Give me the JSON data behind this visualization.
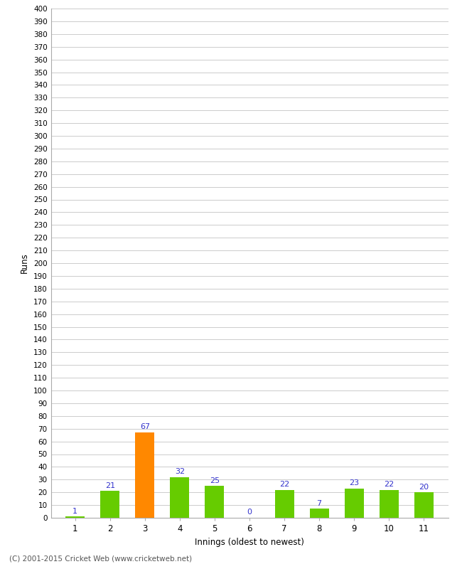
{
  "xlabel": "Innings (oldest to newest)",
  "ylabel": "Runs",
  "categories": [
    "1",
    "2",
    "3",
    "4",
    "5",
    "6",
    "7",
    "8",
    "9",
    "10",
    "11"
  ],
  "values": [
    1,
    21,
    67,
    32,
    25,
    0,
    22,
    7,
    23,
    22,
    20
  ],
  "bar_colors": [
    "#66cc00",
    "#66cc00",
    "#ff8800",
    "#66cc00",
    "#66cc00",
    "#66cc00",
    "#66cc00",
    "#66cc00",
    "#66cc00",
    "#66cc00",
    "#66cc00"
  ],
  "label_color": "#3333cc",
  "yticks": [
    0,
    10,
    20,
    30,
    40,
    50,
    60,
    70,
    80,
    90,
    100,
    110,
    120,
    130,
    140,
    150,
    160,
    170,
    180,
    190,
    200,
    210,
    220,
    230,
    240,
    250,
    260,
    270,
    280,
    290,
    300,
    310,
    320,
    330,
    340,
    350,
    360,
    370,
    380,
    390,
    400
  ],
  "ylim": [
    0,
    400
  ],
  "background_color": "#ffffff",
  "grid_color": "#cccccc",
  "footer": "(C) 2001-2015 Cricket Web (www.cricketweb.net)",
  "bar_width": 0.55
}
